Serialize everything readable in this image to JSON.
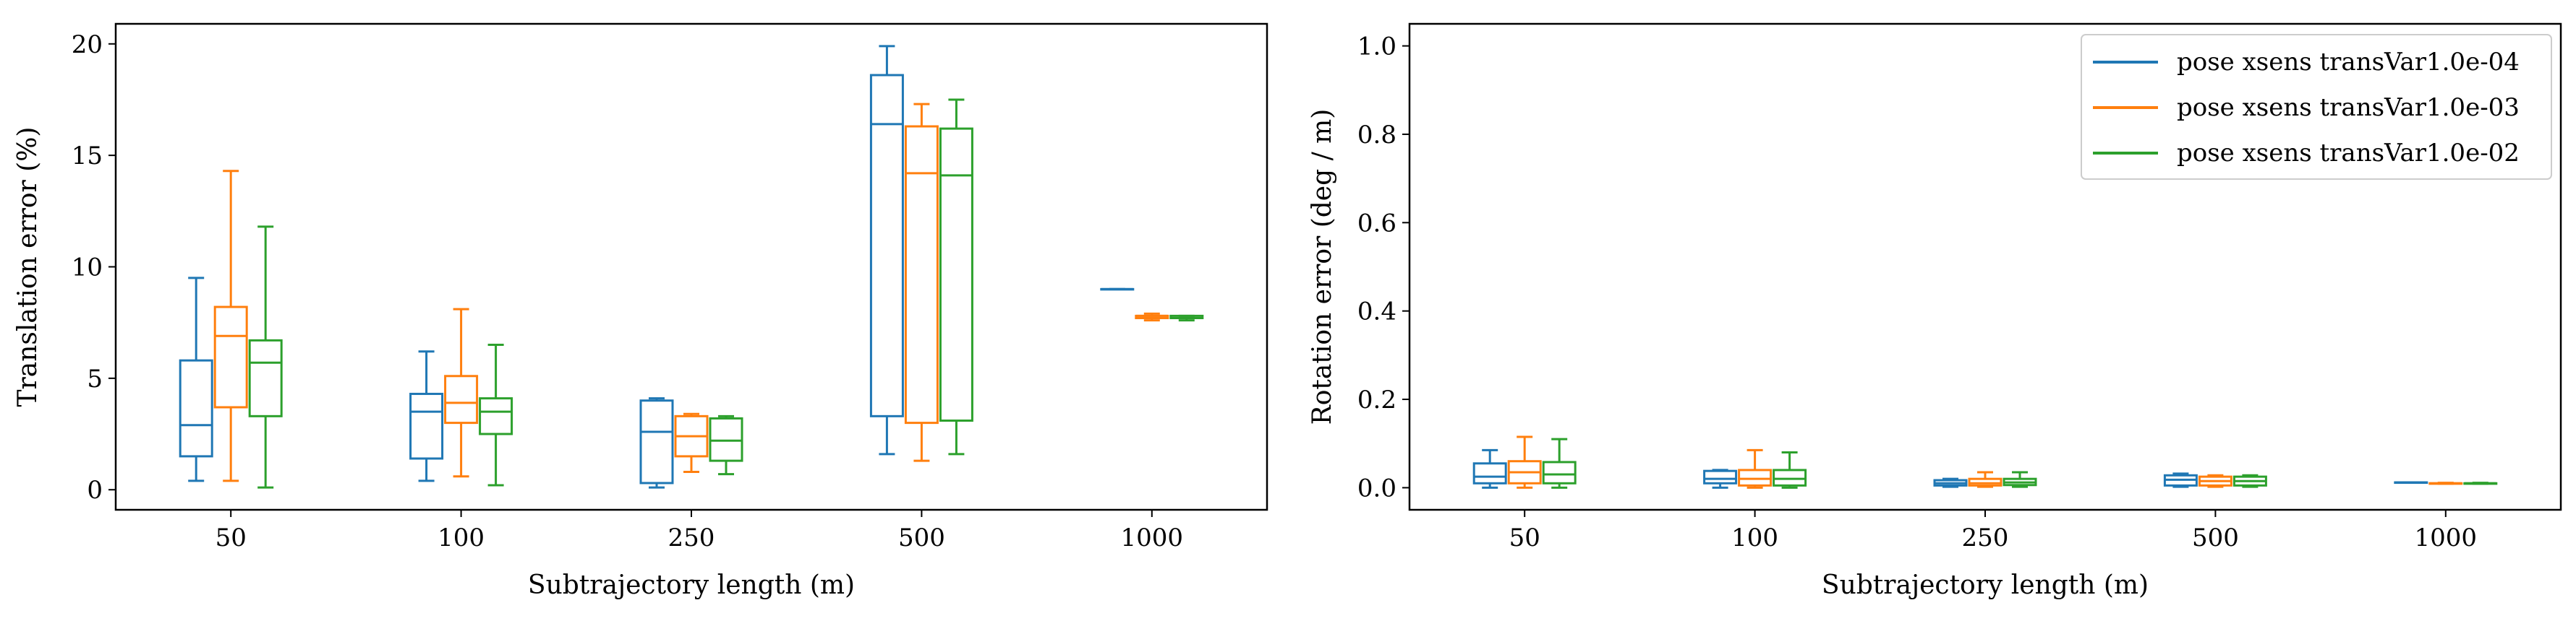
{
  "chart_data": [
    {
      "type": "box",
      "xlabel": "Subtrajectory length (m)",
      "ylabel": "Translation error (%)",
      "categories": [
        "50",
        "100",
        "250",
        "500",
        "1000"
      ],
      "ylim": [
        -0.9,
        20.9
      ],
      "yticks": [
        0,
        5,
        10,
        15,
        20
      ],
      "grid": false,
      "series": [
        {
          "color": "#1f77b4",
          "boxes": [
            {
              "whislo": 0.4,
              "q1": 1.5,
              "med": 2.9,
              "q3": 5.8,
              "whishi": 9.5
            },
            {
              "whislo": 0.4,
              "q1": 1.4,
              "med": 3.5,
              "q3": 4.3,
              "whishi": 6.2
            },
            {
              "whislo": 0.1,
              "q1": 0.3,
              "med": 2.6,
              "q3": 4.0,
              "whishi": 4.1
            },
            {
              "whislo": 1.6,
              "q1": 3.3,
              "med": 16.4,
              "q3": 18.6,
              "whishi": 19.9
            },
            {
              "whislo": 9.0,
              "q1": 9.0,
              "med": 9.0,
              "q3": 9.0,
              "whishi": 9.0
            }
          ]
        },
        {
          "color": "#ff7f0e",
          "boxes": [
            {
              "whislo": 0.4,
              "q1": 3.7,
              "med": 6.9,
              "q3": 8.2,
              "whishi": 14.3
            },
            {
              "whislo": 0.6,
              "q1": 3.0,
              "med": 3.9,
              "q3": 5.1,
              "whishi": 8.1
            },
            {
              "whislo": 0.8,
              "q1": 1.5,
              "med": 2.4,
              "q3": 3.3,
              "whishi": 3.4
            },
            {
              "whislo": 1.3,
              "q1": 3.0,
              "med": 14.2,
              "q3": 16.3,
              "whishi": 17.3
            },
            {
              "whislo": 7.6,
              "q1": 7.7,
              "med": 7.8,
              "q3": 7.8,
              "whishi": 7.9
            }
          ]
        },
        {
          "color": "#2ca02c",
          "boxes": [
            {
              "whislo": 0.1,
              "q1": 3.3,
              "med": 5.7,
              "q3": 6.7,
              "whishi": 11.8
            },
            {
              "whislo": 0.2,
              "q1": 2.5,
              "med": 3.5,
              "q3": 4.1,
              "whishi": 6.5
            },
            {
              "whislo": 0.7,
              "q1": 1.3,
              "med": 2.2,
              "q3": 3.2,
              "whishi": 3.3
            },
            {
              "whislo": 1.6,
              "q1": 3.1,
              "med": 14.1,
              "q3": 16.2,
              "whishi": 17.5
            },
            {
              "whislo": 7.6,
              "q1": 7.7,
              "med": 7.7,
              "q3": 7.8,
              "whishi": 7.8
            }
          ]
        }
      ]
    },
    {
      "type": "box",
      "xlabel": "Subtrajectory length (m)",
      "ylabel": "Rotation error (deg / m)",
      "categories": [
        "50",
        "100",
        "250",
        "500",
        "1000"
      ],
      "ylim": [
        -0.05,
        1.05
      ],
      "yticks": [
        "0.0",
        "0.2",
        "0.4",
        "0.6",
        "0.8",
        "1.0"
      ],
      "grid": false,
      "legend_position": "top-right",
      "series": [
        {
          "name": "pose xsens transVar1.0e-04",
          "color": "#1f77b4",
          "boxes": [
            {
              "whislo": 0.0,
              "q1": 0.01,
              "med": 0.025,
              "q3": 0.055,
              "whishi": 0.085
            },
            {
              "whislo": 0.0,
              "q1": 0.01,
              "med": 0.02,
              "q3": 0.038,
              "whishi": 0.04
            },
            {
              "whislo": 0.002,
              "q1": 0.005,
              "med": 0.01,
              "q3": 0.017,
              "whishi": 0.02
            },
            {
              "whislo": 0.002,
              "q1": 0.005,
              "med": 0.018,
              "q3": 0.028,
              "whishi": 0.032
            },
            {
              "whislo": 0.012,
              "q1": 0.012,
              "med": 0.012,
              "q3": 0.012,
              "whishi": 0.012
            }
          ]
        },
        {
          "name": "pose xsens transVar1.0e-03",
          "color": "#ff7f0e",
          "boxes": [
            {
              "whislo": 0.0,
              "q1": 0.01,
              "med": 0.035,
              "q3": 0.06,
              "whishi": 0.115
            },
            {
              "whislo": 0.0,
              "q1": 0.005,
              "med": 0.02,
              "q3": 0.04,
              "whishi": 0.085
            },
            {
              "whislo": 0.002,
              "q1": 0.005,
              "med": 0.01,
              "q3": 0.02,
              "whishi": 0.035
            },
            {
              "whislo": 0.002,
              "q1": 0.005,
              "med": 0.015,
              "q3": 0.025,
              "whishi": 0.028
            },
            {
              "whislo": 0.009,
              "q1": 0.009,
              "med": 0.01,
              "q3": 0.01,
              "whishi": 0.011
            }
          ]
        },
        {
          "name": "pose xsens transVar1.0e-02",
          "color": "#2ca02c",
          "boxes": [
            {
              "whislo": 0.0,
              "q1": 0.01,
              "med": 0.03,
              "q3": 0.058,
              "whishi": 0.11
            },
            {
              "whislo": 0.0,
              "q1": 0.005,
              "med": 0.02,
              "q3": 0.04,
              "whishi": 0.08
            },
            {
              "whislo": 0.002,
              "q1": 0.006,
              "med": 0.012,
              "q3": 0.02,
              "whishi": 0.035
            },
            {
              "whislo": 0.002,
              "q1": 0.005,
              "med": 0.015,
              "q3": 0.025,
              "whishi": 0.028
            },
            {
              "whislo": 0.009,
              "q1": 0.009,
              "med": 0.01,
              "q3": 0.01,
              "whishi": 0.011
            }
          ]
        }
      ]
    }
  ]
}
